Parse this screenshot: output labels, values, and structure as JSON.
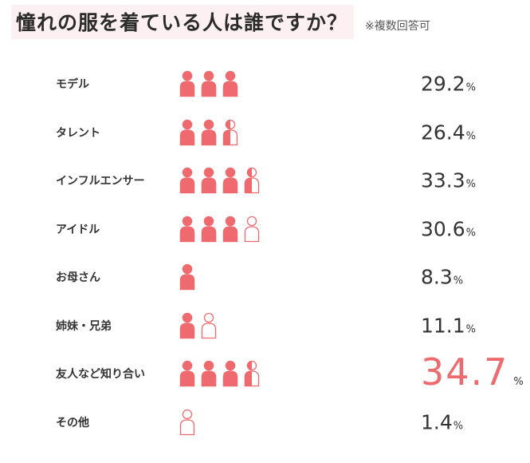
{
  "title": "憧れの服を着ている人は誰ですか？",
  "note": "※複数回答可",
  "colors": {
    "accent": "#ee6a6e",
    "text": "#333333",
    "title_bg": "#fdf0f2"
  },
  "icon": "person-icon",
  "chart_data": {
    "type": "pictograph",
    "title": "憧れの服を着ている人は誰ですか？",
    "subtitle": "※複数回答可",
    "unit": "%",
    "icon_value": 10,
    "categories": [
      "モデル",
      "タレント",
      "インフルエンサー",
      "アイドル",
      "お母さん",
      "姉妹・兄弟",
      "友人など知り合い",
      "その他"
    ],
    "values": [
      29.2,
      26.4,
      33.3,
      30.6,
      8.3,
      11.1,
      34.7,
      1.4
    ],
    "icon_fills": [
      [
        1,
        1,
        1
      ],
      [
        1,
        1,
        0.5
      ],
      [
        1,
        1,
        1,
        0.5
      ],
      [
        1,
        1,
        1,
        0
      ],
      [
        1
      ],
      [
        1,
        0
      ],
      [
        1,
        1,
        1,
        0.5
      ],
      [
        0
      ]
    ],
    "highlight_index": 6
  }
}
